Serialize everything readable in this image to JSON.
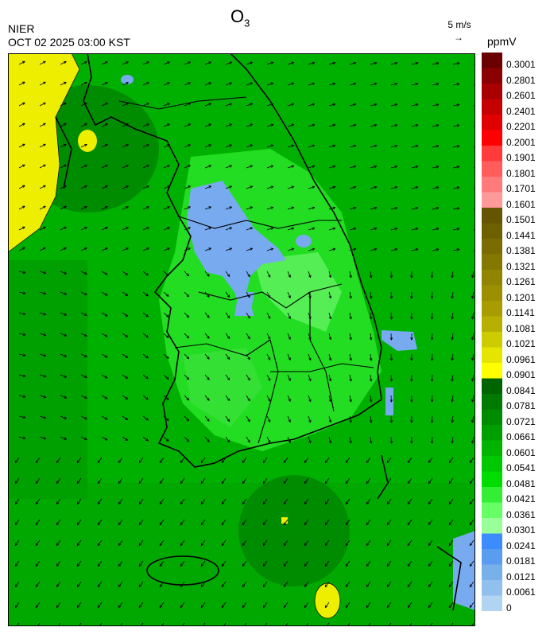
{
  "header": {
    "title_main": "O",
    "title_sub": "3",
    "agency": "NIER",
    "datetime": "OCT 02 2025 03:00 KST",
    "wind_reference": "5 m/s",
    "unit": "ppmV"
  },
  "legend": {
    "levels": [
      "0.3001",
      "0.2801",
      "0.2601",
      "0.2401",
      "0.2201",
      "0.2001",
      "0.1901",
      "0.1801",
      "0.1701",
      "0.1601",
      "0.1501",
      "0.1441",
      "0.1381",
      "0.1321",
      "0.1261",
      "0.1201",
      "0.1141",
      "0.1081",
      "0.1021",
      "0.0961",
      "0.0901",
      "0.0841",
      "0.0781",
      "0.0721",
      "0.0661",
      "0.0601",
      "0.0541",
      "0.0481",
      "0.0421",
      "0.0361",
      "0.0301",
      "0.0241",
      "0.0181",
      "0.0121",
      "0.0061",
      "0"
    ],
    "colors": [
      "#6b0000",
      "#8b0000",
      "#a80000",
      "#c40000",
      "#e00000",
      "#ff0000",
      "#ff3a3a",
      "#ff5c5c",
      "#ff7a7a",
      "#ff9a9a",
      "#665500",
      "#6d6000",
      "#7a6c00",
      "#857800",
      "#918400",
      "#9c9000",
      "#a89c00",
      "#b8b000",
      "#cccc00",
      "#e5e500",
      "#ffff00",
      "#006400",
      "#007a00",
      "#008c00",
      "#009f00",
      "#00b400",
      "#00c800",
      "#00dc00",
      "#33ee33",
      "#66ff66",
      "#99ff99",
      "#3c8cff",
      "#5a9cf0",
      "#78b0ea",
      "#92c0ee",
      "#b0d4f2"
    ]
  }
}
